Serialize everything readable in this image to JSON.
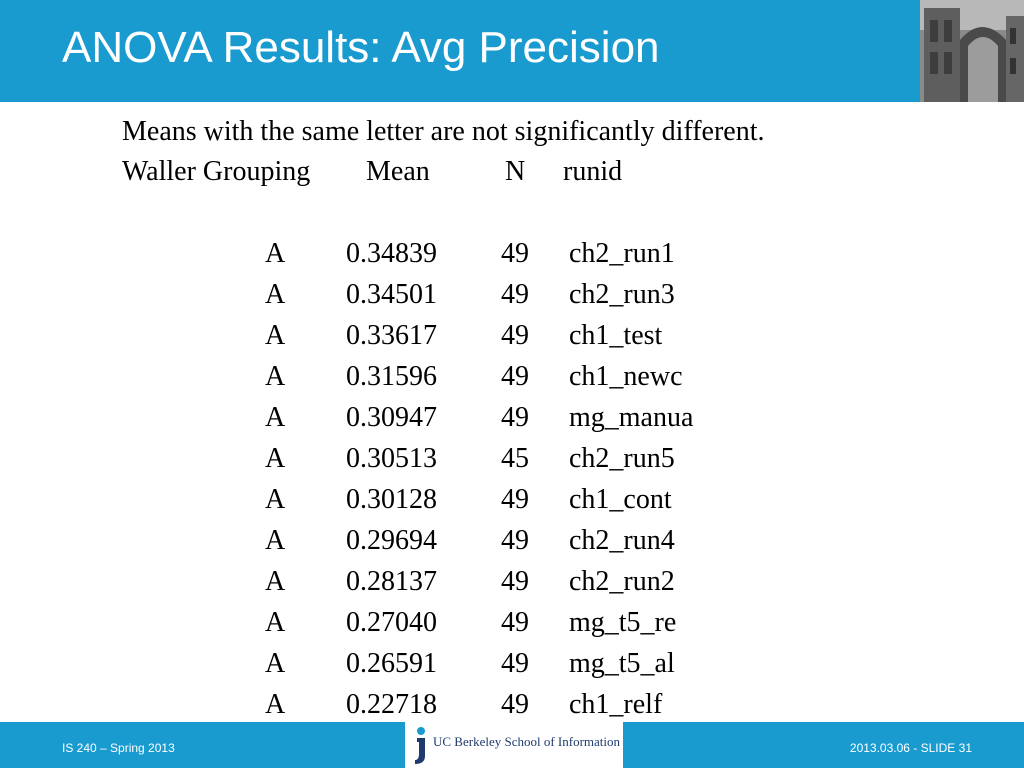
{
  "title": "ANOVA Results: Avg Precision",
  "intro": "Means with the same letter are not significantly different.",
  "columns": {
    "grouping": "Waller Grouping",
    "mean": "Mean",
    "n": "N",
    "runid": "runid"
  },
  "rows": [
    {
      "group": "A",
      "mean": "0.34839",
      "n": "49",
      "runid": "ch2_run1"
    },
    {
      "group": "A",
      "mean": "0.34501",
      "n": "49",
      "runid": "ch2_run3"
    },
    {
      "group": "A",
      "mean": "0.33617",
      "n": "49",
      "runid": "ch1_test"
    },
    {
      "group": "A",
      "mean": "0.31596",
      "n": "49",
      "runid": "ch1_newc"
    },
    {
      "group": "A",
      "mean": "0.30947",
      "n": "49",
      "runid": "mg_manua"
    },
    {
      "group": "A",
      "mean": "0.30513",
      "n": "45",
      "runid": "ch2_run5"
    },
    {
      "group": "A",
      "mean": "0.30128",
      "n": "49",
      "runid": "ch1_cont"
    },
    {
      "group": "A",
      "mean": "0.29694",
      "n": "49",
      "runid": "ch2_run4"
    },
    {
      "group": "A",
      "mean": "0.28137",
      "n": "49",
      "runid": "ch2_run2"
    },
    {
      "group": "A",
      "mean": "0.27040",
      "n": "49",
      "runid": "mg_t5_re"
    },
    {
      "group": "A",
      "mean": "0.26591",
      "n": "49",
      "runid": "mg_t5_al"
    },
    {
      "group": "A",
      "mean": "0.22718",
      "n": "49",
      "runid": "ch1_relf"
    }
  ],
  "footer": {
    "left": "IS 240 – Spring 2013",
    "logo_text": "UC Berkeley School of Information",
    "right": "2013.03.06 - SLIDE 31"
  },
  "colors": {
    "brand_blue": "#1a9bd0",
    "logo_navy": "#1f3a6d"
  },
  "icons": {
    "header_photo": "campus-building-photo",
    "footer_logo": "ischool-logo-icon"
  }
}
